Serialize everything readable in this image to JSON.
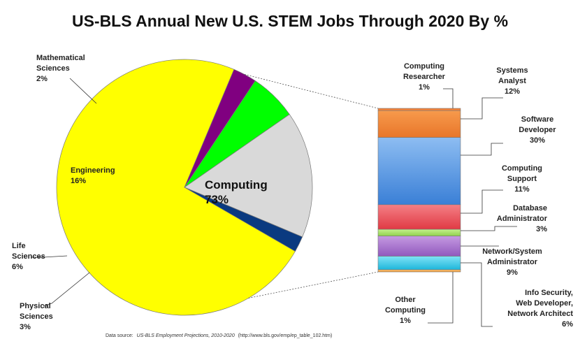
{
  "chart_data": {
    "title": "US-BLS Annual New U.S. STEM Jobs Through 2020 By %",
    "type": "pie",
    "pie": {
      "slices": [
        {
          "label": "Computing",
          "value": 73,
          "value_label": "73%",
          "color": "#ffff00"
        },
        {
          "label": "Physical Sciences",
          "value": 3,
          "value_label": "3%",
          "color": "#800080"
        },
        {
          "label": "Life Sciences",
          "value": 6,
          "value_label": "6%",
          "color": "#00ff00"
        },
        {
          "label": "Engineering",
          "value": 16,
          "value_label": "16%",
          "color": "#d9d9d9"
        },
        {
          "label": "Mathematical Sciences",
          "value": 2,
          "value_label": "2%",
          "color": "#0a3a80"
        }
      ]
    },
    "breakdown": {
      "type": "stacked-bar",
      "of": "Computing",
      "segments": [
        {
          "label": "Other Computing",
          "value": 1,
          "value_label": "1%",
          "color": "#f5a623"
        },
        {
          "label": "Info Security, Web Developer, Network Architect",
          "value": 6,
          "value_label": "6%",
          "color": "#ffffff"
        },
        {
          "label": "Network/System Administrator",
          "value": 9,
          "value_label": "9%",
          "color": "#33c6e6"
        },
        {
          "label": "Database Administrator",
          "value": 3,
          "value_label": "3%",
          "color": "#a36dc6"
        },
        {
          "label": "Computing Support",
          "value": 11,
          "value_label": "11%",
          "color": "#a6e06a"
        },
        {
          "label": "Software Developer",
          "value": 30,
          "value_label": "30%",
          "color": "#e8505a"
        },
        {
          "label": "Systems Analyst",
          "value": 12,
          "value_label": "12%",
          "color": "#4d8fde"
        },
        {
          "label": "Computing Researcher",
          "value": 1,
          "value_label": "1%",
          "color": "#f2823a"
        }
      ]
    },
    "source_prefix": "Data source:",
    "source_italic": "US-BLS Employment Projections, 2010-2020",
    "source_suffix": "(http://www.bls.gov/emp/ep_table_102.htm)"
  }
}
